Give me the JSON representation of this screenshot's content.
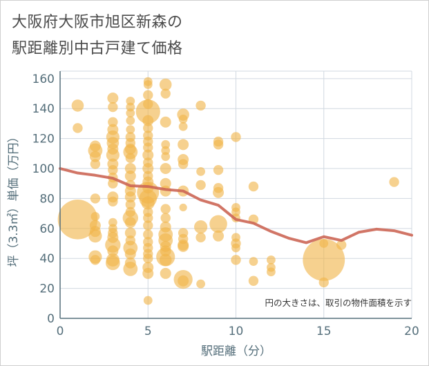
{
  "chart_data": {
    "type": "scatter",
    "title": [
      "大阪府大阪市旭区新森の",
      "駅距離別中古戸建て価格"
    ],
    "xlabel": "駅距離（分）",
    "ylabel": "坪（3.3㎡）単価（万円）",
    "xlim": [
      0,
      20
    ],
    "ylim": [
      0,
      165
    ],
    "xticks": [
      0,
      5,
      10,
      15,
      20
    ],
    "yticks": [
      0,
      20,
      40,
      60,
      80,
      100,
      120,
      140,
      160
    ],
    "annotation": "円の大きさは、取引の物件面積を示す",
    "colors": {
      "bubble": "#f0b54a",
      "line": "#cc6655",
      "grid": "#d0d8e0",
      "axis": "#546e7a"
    },
    "trend_line": {
      "x": [
        0,
        1,
        2,
        3,
        4,
        5,
        6,
        7,
        8,
        9,
        10,
        11,
        12,
        13,
        14,
        15,
        16,
        17,
        18,
        19,
        20
      ],
      "y": [
        100,
        97,
        95.5,
        93.5,
        88.5,
        88,
        86,
        85,
        79,
        75.5,
        66,
        63.5,
        58,
        53.5,
        50.5,
        54.5,
        52,
        57.5,
        59.5,
        58.5,
        55.5
      ]
    },
    "bubbles": [
      {
        "x": 1,
        "y": 66,
        "s": 3.6
      },
      {
        "x": 1,
        "y": 142,
        "s": 1.1
      },
      {
        "x": 1,
        "y": 127,
        "s": 0.9
      },
      {
        "x": 2,
        "y": 115,
        "s": 1.0
      },
      {
        "x": 2,
        "y": 112,
        "s": 1.3
      },
      {
        "x": 2,
        "y": 108,
        "s": 1.0
      },
      {
        "x": 2,
        "y": 103,
        "s": 0.9
      },
      {
        "x": 2,
        "y": 80,
        "s": 0.9
      },
      {
        "x": 2,
        "y": 68,
        "s": 0.8
      },
      {
        "x": 2,
        "y": 62,
        "s": 1.0
      },
      {
        "x": 2,
        "y": 58,
        "s": 1.0
      },
      {
        "x": 2,
        "y": 55,
        "s": 1.2
      },
      {
        "x": 2,
        "y": 41,
        "s": 1.2
      },
      {
        "x": 2,
        "y": 39,
        "s": 0.9
      },
      {
        "x": 3,
        "y": 147,
        "s": 1.0
      },
      {
        "x": 3,
        "y": 141,
        "s": 0.9
      },
      {
        "x": 3,
        "y": 131,
        "s": 0.9
      },
      {
        "x": 3,
        "y": 126,
        "s": 1.0
      },
      {
        "x": 3,
        "y": 121,
        "s": 1.2
      },
      {
        "x": 3,
        "y": 117,
        "s": 1.1
      },
      {
        "x": 3,
        "y": 113,
        "s": 1.0
      },
      {
        "x": 3,
        "y": 109,
        "s": 1.2
      },
      {
        "x": 3,
        "y": 103,
        "s": 1.0
      },
      {
        "x": 3,
        "y": 99,
        "s": 0.9
      },
      {
        "x": 3,
        "y": 94,
        "s": 0.9
      },
      {
        "x": 3,
        "y": 90,
        "s": 0.9
      },
      {
        "x": 3,
        "y": 81,
        "s": 1.0
      },
      {
        "x": 3,
        "y": 78,
        "s": 0.9
      },
      {
        "x": 3,
        "y": 64,
        "s": 0.8
      },
      {
        "x": 3,
        "y": 60,
        "s": 0.8
      },
      {
        "x": 3,
        "y": 57,
        "s": 0.9
      },
      {
        "x": 3,
        "y": 54,
        "s": 1.0
      },
      {
        "x": 3,
        "y": 49,
        "s": 1.4
      },
      {
        "x": 3,
        "y": 45,
        "s": 1.0
      },
      {
        "x": 3,
        "y": 39,
        "s": 1.2
      },
      {
        "x": 3,
        "y": 37,
        "s": 1.3
      },
      {
        "x": 4,
        "y": 145,
        "s": 0.8
      },
      {
        "x": 4,
        "y": 141,
        "s": 0.8
      },
      {
        "x": 4,
        "y": 137,
        "s": 0.8
      },
      {
        "x": 4,
        "y": 132,
        "s": 0.8
      },
      {
        "x": 4,
        "y": 126,
        "s": 0.8
      },
      {
        "x": 4,
        "y": 121,
        "s": 0.9
      },
      {
        "x": 4,
        "y": 117,
        "s": 0.9
      },
      {
        "x": 4,
        "y": 113,
        "s": 1.0
      },
      {
        "x": 4,
        "y": 111,
        "s": 1.3
      },
      {
        "x": 4,
        "y": 107,
        "s": 0.9
      },
      {
        "x": 4,
        "y": 100,
        "s": 1.0
      },
      {
        "x": 4,
        "y": 95,
        "s": 1.0
      },
      {
        "x": 4,
        "y": 89,
        "s": 0.9
      },
      {
        "x": 4,
        "y": 85,
        "s": 1.0
      },
      {
        "x": 4,
        "y": 81,
        "s": 1.0
      },
      {
        "x": 4,
        "y": 76,
        "s": 0.9
      },
      {
        "x": 4,
        "y": 71,
        "s": 0.9
      },
      {
        "x": 4,
        "y": 67,
        "s": 1.4
      },
      {
        "x": 4,
        "y": 64,
        "s": 1.0
      },
      {
        "x": 4,
        "y": 57,
        "s": 1.0
      },
      {
        "x": 4,
        "y": 52,
        "s": 0.9
      },
      {
        "x": 4,
        "y": 47,
        "s": 1.3
      },
      {
        "x": 4,
        "y": 43,
        "s": 1.0
      },
      {
        "x": 4,
        "y": 37,
        "s": 1.0
      },
      {
        "x": 4,
        "y": 33,
        "s": 1.3
      },
      {
        "x": 5,
        "y": 158,
        "s": 0.8
      },
      {
        "x": 5,
        "y": 156,
        "s": 0.8
      },
      {
        "x": 5,
        "y": 149,
        "s": 0.9
      },
      {
        "x": 5,
        "y": 143,
        "s": 0.9
      },
      {
        "x": 5,
        "y": 138,
        "s": 2.2
      },
      {
        "x": 5,
        "y": 132,
        "s": 1.0
      },
      {
        "x": 5,
        "y": 127,
        "s": 0.9
      },
      {
        "x": 5,
        "y": 122,
        "s": 0.9
      },
      {
        "x": 5,
        "y": 118,
        "s": 0.9
      },
      {
        "x": 5,
        "y": 114,
        "s": 0.9
      },
      {
        "x": 5,
        "y": 109,
        "s": 1.0
      },
      {
        "x": 5,
        "y": 104,
        "s": 0.9
      },
      {
        "x": 5,
        "y": 100,
        "s": 1.0
      },
      {
        "x": 5,
        "y": 95,
        "s": 0.9
      },
      {
        "x": 5,
        "y": 91,
        "s": 1.0
      },
      {
        "x": 5,
        "y": 87,
        "s": 1.0
      },
      {
        "x": 5,
        "y": 84,
        "s": 2.0
      },
      {
        "x": 5,
        "y": 80,
        "s": 1.6
      },
      {
        "x": 5,
        "y": 77,
        "s": 1.2
      },
      {
        "x": 5,
        "y": 71,
        "s": 0.9
      },
      {
        "x": 5,
        "y": 67,
        "s": 0.9
      },
      {
        "x": 5,
        "y": 62,
        "s": 0.9
      },
      {
        "x": 5,
        "y": 56,
        "s": 0.9
      },
      {
        "x": 5,
        "y": 51,
        "s": 0.9
      },
      {
        "x": 5,
        "y": 47,
        "s": 0.9
      },
      {
        "x": 5,
        "y": 43,
        "s": 0.9
      },
      {
        "x": 5,
        "y": 40,
        "s": 0.9
      },
      {
        "x": 5,
        "y": 34,
        "s": 1.0
      },
      {
        "x": 5,
        "y": 30,
        "s": 1.0
      },
      {
        "x": 5,
        "y": 12,
        "s": 0.8
      },
      {
        "x": 6,
        "y": 156,
        "s": 1.1
      },
      {
        "x": 6,
        "y": 150,
        "s": 0.9
      },
      {
        "x": 6,
        "y": 131,
        "s": 1.0
      },
      {
        "x": 6,
        "y": 116,
        "s": 0.8
      },
      {
        "x": 6,
        "y": 112,
        "s": 0.8
      },
      {
        "x": 6,
        "y": 108,
        "s": 0.8
      },
      {
        "x": 6,
        "y": 100,
        "s": 1.0
      },
      {
        "x": 6,
        "y": 90,
        "s": 1.0
      },
      {
        "x": 6,
        "y": 85,
        "s": 1.0
      },
      {
        "x": 6,
        "y": 73,
        "s": 0.9
      },
      {
        "x": 6,
        "y": 67,
        "s": 0.9
      },
      {
        "x": 6,
        "y": 61,
        "s": 1.0
      },
      {
        "x": 6,
        "y": 56,
        "s": 1.3
      },
      {
        "x": 6,
        "y": 52,
        "s": 1.3
      },
      {
        "x": 6,
        "y": 48,
        "s": 1.0
      },
      {
        "x": 6,
        "y": 45,
        "s": 1.0
      },
      {
        "x": 6,
        "y": 41,
        "s": 1.7
      },
      {
        "x": 6,
        "y": 39,
        "s": 1.1
      },
      {
        "x": 6,
        "y": 30,
        "s": 1.0
      },
      {
        "x": 7,
        "y": 136,
        "s": 1.1
      },
      {
        "x": 7,
        "y": 133,
        "s": 0.8
      },
      {
        "x": 7,
        "y": 128,
        "s": 0.8
      },
      {
        "x": 7,
        "y": 116,
        "s": 1.0
      },
      {
        "x": 7,
        "y": 106,
        "s": 1.0
      },
      {
        "x": 7,
        "y": 103,
        "s": 0.9
      },
      {
        "x": 7,
        "y": 85,
        "s": 1.0
      },
      {
        "x": 7,
        "y": 74,
        "s": 0.7
      },
      {
        "x": 7,
        "y": 57,
        "s": 0.9
      },
      {
        "x": 7,
        "y": 53,
        "s": 0.9
      },
      {
        "x": 7,
        "y": 49,
        "s": 1.0
      },
      {
        "x": 7,
        "y": 48,
        "s": 1.0
      },
      {
        "x": 7,
        "y": 26,
        "s": 1.7
      },
      {
        "x": 7,
        "y": 25,
        "s": 1.0
      },
      {
        "x": 8,
        "y": 142,
        "s": 0.9
      },
      {
        "x": 8,
        "y": 98,
        "s": 0.8
      },
      {
        "x": 8,
        "y": 89,
        "s": 0.9
      },
      {
        "x": 8,
        "y": 61,
        "s": 1.2
      },
      {
        "x": 8,
        "y": 54,
        "s": 0.9
      },
      {
        "x": 8,
        "y": 23,
        "s": 0.8
      },
      {
        "x": 9,
        "y": 118,
        "s": 0.9
      },
      {
        "x": 9,
        "y": 116,
        "s": 0.9
      },
      {
        "x": 9,
        "y": 99,
        "s": 0.9
      },
      {
        "x": 9,
        "y": 87,
        "s": 0.9
      },
      {
        "x": 9,
        "y": 84,
        "s": 1.0
      },
      {
        "x": 9,
        "y": 63,
        "s": 1.6
      },
      {
        "x": 9,
        "y": 55,
        "s": 1.0
      },
      {
        "x": 10,
        "y": 121,
        "s": 0.9
      },
      {
        "x": 10,
        "y": 74,
        "s": 0.8
      },
      {
        "x": 10,
        "y": 71,
        "s": 0.8
      },
      {
        "x": 10,
        "y": 67,
        "s": 0.8
      },
      {
        "x": 10,
        "y": 54,
        "s": 0.8
      },
      {
        "x": 10,
        "y": 50,
        "s": 0.9
      },
      {
        "x": 10,
        "y": 47,
        "s": 0.8
      },
      {
        "x": 10,
        "y": 39,
        "s": 0.9
      },
      {
        "x": 11,
        "y": 88,
        "s": 0.9
      },
      {
        "x": 11,
        "y": 66,
        "s": 0.9
      },
      {
        "x": 11,
        "y": 38,
        "s": 0.8
      },
      {
        "x": 11,
        "y": 25,
        "s": 0.9
      },
      {
        "x": 12,
        "y": 39,
        "s": 0.8
      },
      {
        "x": 12,
        "y": 34,
        "s": 0.8
      },
      {
        "x": 12,
        "y": 31,
        "s": 0.8
      },
      {
        "x": 15,
        "y": 39,
        "s": 3.8
      },
      {
        "x": 15,
        "y": 50,
        "s": 0.8
      },
      {
        "x": 15,
        "y": 24,
        "s": 0.9
      },
      {
        "x": 16,
        "y": 49,
        "s": 0.9
      },
      {
        "x": 19,
        "y": 91,
        "s": 0.9
      }
    ]
  }
}
